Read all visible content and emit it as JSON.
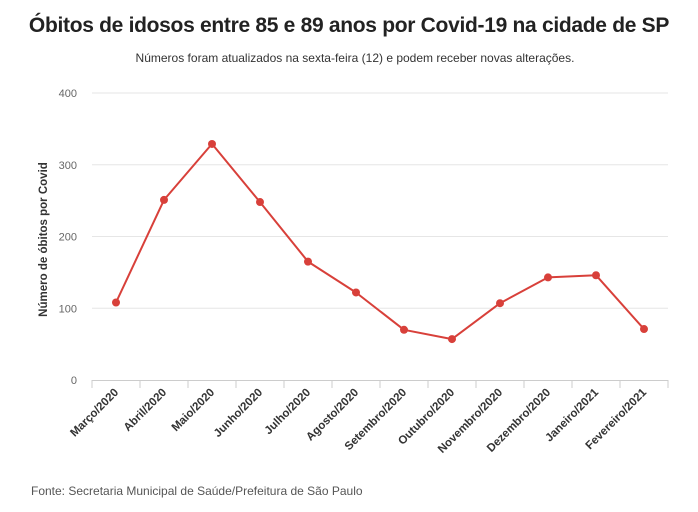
{
  "chart_data": {
    "type": "line",
    "title": "Óbitos de idosos entre 85 e 89 anos por Covid-19 na cidade de SP",
    "subtitle": "Números foram atualizados na sexta-feira (12) e podem receber novas alterações.",
    "source": "Fonte: Secretaria Municipal de Saúde/Prefeitura de São Paulo",
    "xlabel": "",
    "ylabel": "Número de óbitos por Covid",
    "ylim": [
      0,
      400
    ],
    "yticks": [
      0,
      100,
      200,
      300,
      400
    ],
    "grid": true,
    "categories": [
      "Março/2020",
      "Abril/2020",
      "Maio/2020",
      "Junho/2020",
      "Julho/2020",
      "Agosto/2020",
      "Setembro/2020",
      "Outubro/2020",
      "Novembro/2020",
      "Dezembro/2020",
      "Janeiro/2021",
      "Fevereiro/2021"
    ],
    "series": [
      {
        "name": "Óbitos",
        "color": "#d8403a",
        "values": [
          108,
          251,
          329,
          248,
          165,
          122,
          70,
          57,
          107,
          143,
          146,
          71
        ]
      }
    ]
  }
}
